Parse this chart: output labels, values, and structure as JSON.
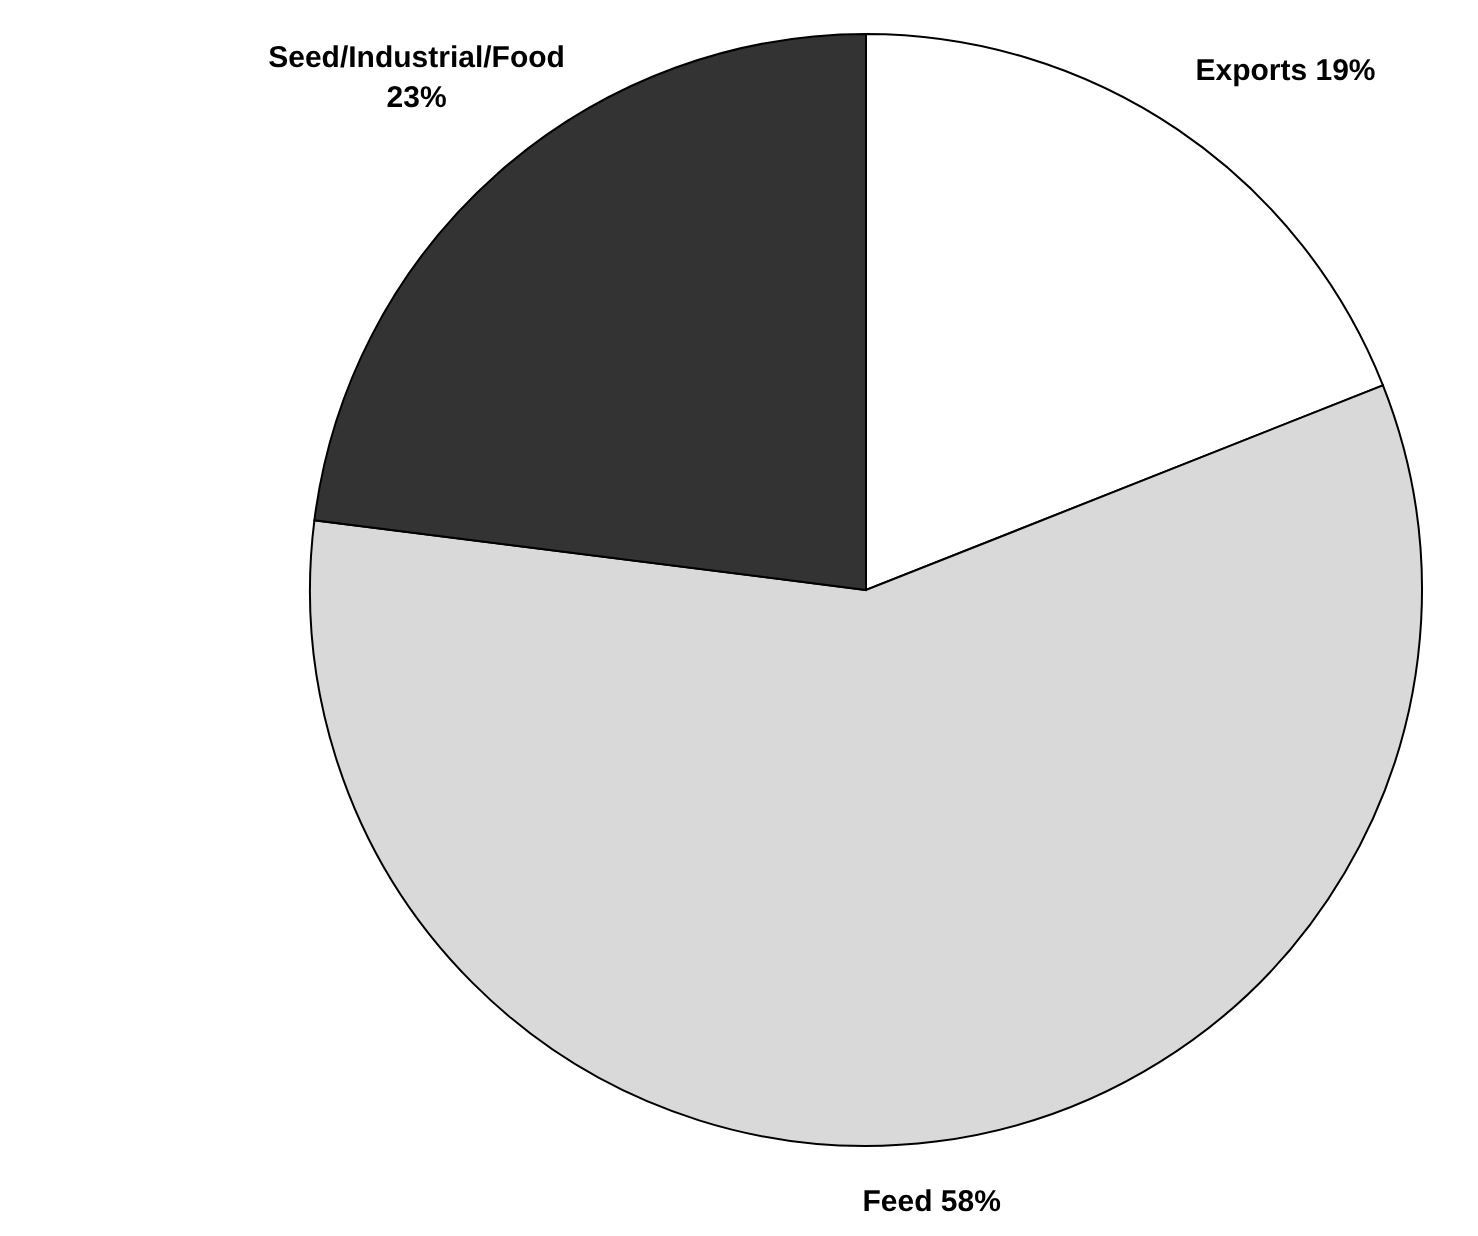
{
  "chart_data": {
    "type": "pie",
    "categories": [
      "Exports",
      "Feed",
      "Seed/Industrial/Food"
    ],
    "values": [
      19,
      58,
      23
    ],
    "value_labels": [
      "19%",
      "58%",
      "23%"
    ],
    "colors": [
      "#ffffff",
      "#d9d9d9",
      "#333333"
    ]
  }
}
